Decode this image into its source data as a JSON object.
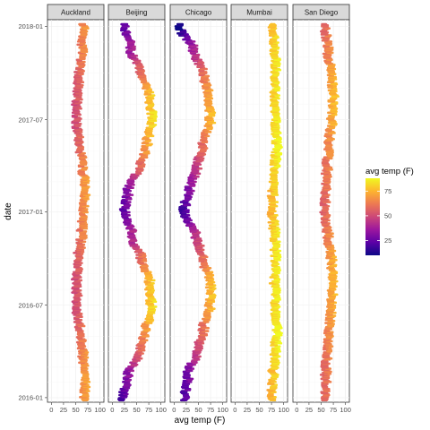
{
  "chart_data": {
    "type": "area",
    "xlabel": "avg temp (F)",
    "ylabel": "date",
    "xlim": [
      -8,
      108
    ],
    "x_ticks": [
      "0",
      "25",
      "50",
      "75",
      "100"
    ],
    "x_tick_values": [
      0,
      25,
      50,
      75,
      100
    ],
    "y_ticks": [
      "2016-01",
      "2016-07",
      "2017-01",
      "2017-07",
      "2018-01"
    ],
    "y_tick_values": [
      "2016-01-01",
      "2016-07-01",
      "2017-01-01",
      "2017-07-01",
      "2018-01-01"
    ],
    "ylim": [
      "2015-12-23",
      "2018-01-14"
    ],
    "legend": {
      "title": "avg temp (F)",
      "position": "right",
      "ticks": [
        "25",
        "50",
        "75"
      ],
      "tick_values": [
        25,
        50,
        75
      ],
      "range": [
        10,
        88
      ]
    },
    "colormap": "plasma",
    "grid": true,
    "facets": [
      {
        "name": "Auckland",
        "dates": [
          "2016-01-01",
          "2016-02-15",
          "2016-04-01",
          "2016-05-15",
          "2016-07-01",
          "2016-08-15",
          "2016-10-01",
          "2016-11-15",
          "2017-01-01",
          "2017-02-15",
          "2017-04-01",
          "2017-05-15",
          "2017-07-01",
          "2017-08-15",
          "2017-10-01",
          "2017-11-15",
          "2018-01-01"
        ],
        "temps": [
          68,
          69,
          65,
          58,
          52,
          52,
          56,
          62,
          67,
          69,
          64,
          58,
          51,
          52,
          57,
          63,
          68
        ]
      },
      {
        "name": "Beijing",
        "dates": [
          "2016-01-01",
          "2016-02-15",
          "2016-04-01",
          "2016-05-15",
          "2016-07-01",
          "2016-08-15",
          "2016-10-01",
          "2016-11-15",
          "2017-01-01",
          "2017-02-15",
          "2017-04-01",
          "2017-05-15",
          "2017-07-01",
          "2017-08-15",
          "2017-10-01",
          "2017-11-15",
          "2018-01-01"
        ],
        "temps": [
          23,
          33,
          56,
          70,
          80,
          77,
          60,
          40,
          25,
          33,
          57,
          72,
          81,
          77,
          58,
          38,
          26
        ]
      },
      {
        "name": "Chicago",
        "dates": [
          "2016-01-01",
          "2016-02-15",
          "2016-04-01",
          "2016-05-15",
          "2016-07-01",
          "2016-08-15",
          "2016-10-01",
          "2016-11-15",
          "2017-01-01",
          "2017-02-15",
          "2017-04-01",
          "2017-05-15",
          "2017-07-01",
          "2017-08-15",
          "2017-10-01",
          "2017-11-15",
          "2018-01-01"
        ],
        "temps": [
          22,
          28,
          48,
          60,
          74,
          75,
          60,
          44,
          20,
          32,
          48,
          60,
          74,
          72,
          60,
          40,
          12
        ]
      },
      {
        "name": "Mumbai",
        "dates": [
          "2016-01-01",
          "2016-02-15",
          "2016-04-01",
          "2016-05-15",
          "2016-07-01",
          "2016-08-15",
          "2016-10-01",
          "2016-11-15",
          "2017-01-01",
          "2017-02-15",
          "2017-04-01",
          "2017-05-15",
          "2017-07-01",
          "2017-08-15",
          "2017-10-01",
          "2017-11-15",
          "2018-01-01"
        ],
        "temps": [
          75,
          78,
          83,
          87,
          83,
          82,
          84,
          82,
          76,
          78,
          83,
          86,
          83,
          82,
          84,
          82,
          77
        ]
      },
      {
        "name": "San Diego",
        "dates": [
          "2016-01-01",
          "2016-02-15",
          "2016-04-01",
          "2016-05-15",
          "2016-07-01",
          "2016-08-15",
          "2016-10-01",
          "2016-11-15",
          "2017-01-01",
          "2017-02-15",
          "2017-04-01",
          "2017-05-15",
          "2017-07-01",
          "2017-08-15",
          "2017-10-01",
          "2017-11-15",
          "2018-01-01"
        ],
        "temps": [
          57,
          60,
          63,
          66,
          72,
          75,
          71,
          64,
          57,
          59,
          62,
          66,
          72,
          75,
          70,
          64,
          59
        ]
      }
    ]
  },
  "colors": {
    "scale": [
      "#0d0887",
      "#5c01a6",
      "#9c179e",
      "#cc4778",
      "#ed7953",
      "#fdb42f",
      "#f0f921"
    ],
    "strip_fill": "#d9d9d9",
    "panel_border": "#333333"
  }
}
